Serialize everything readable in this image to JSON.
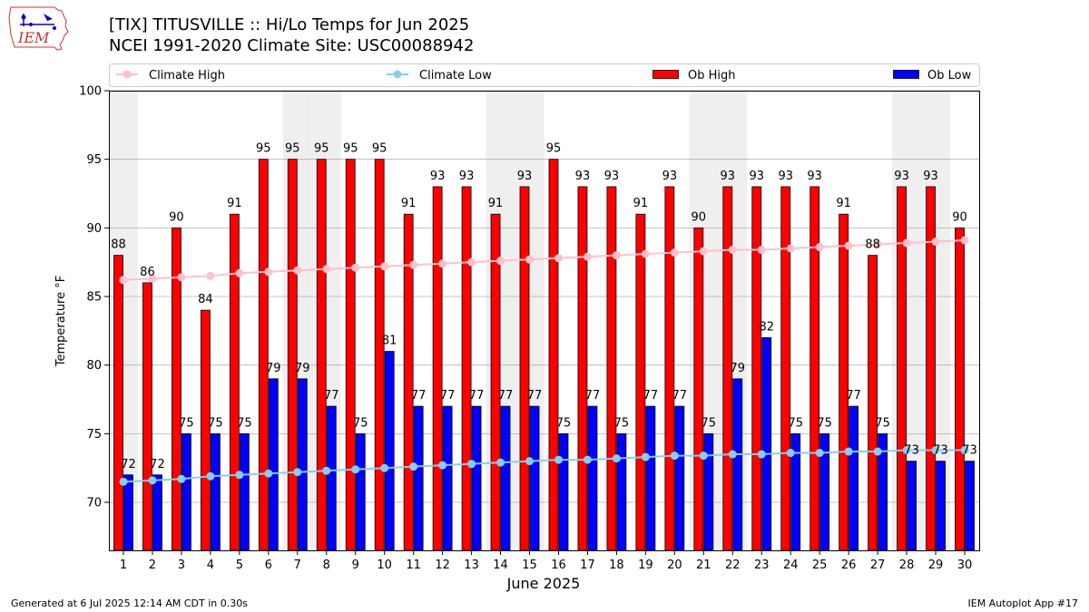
{
  "header": {
    "title_line1": "[TIX] TITUSVILLE :: Hi/Lo Temps for Jun 2025",
    "title_line2": "NCEI 1991-2020 Climate Site: USC00088942"
  },
  "logo": {
    "text": "IEM"
  },
  "footer": {
    "left": "Generated at 6 Jul 2025 12:14 AM CDT in 0.30s",
    "right": "IEM Autoplot App #17"
  },
  "colors": {
    "ob_high": "#ff0000",
    "ob_low": "#0000ff",
    "climate_high": "#ffc0cb",
    "climate_low": "#87ceeb",
    "weekend_shade": "#efefef",
    "grid": "#b0b0b0"
  },
  "chart_data": {
    "type": "bar",
    "xlabel": "June 2025",
    "ylabel": "Temperature °F",
    "ylim": [
      66.5,
      100
    ],
    "yticks": [
      70,
      75,
      80,
      85,
      90,
      95,
      100
    ],
    "grid": "horizontal",
    "legend": {
      "placement": "top",
      "entries": [
        "Climate High",
        "Climate Low",
        "Ob High",
        "Ob Low"
      ]
    },
    "categories": [
      "1",
      "2",
      "3",
      "4",
      "5",
      "6",
      "7",
      "8",
      "9",
      "10",
      "11",
      "12",
      "13",
      "14",
      "15",
      "16",
      "17",
      "18",
      "19",
      "20",
      "21",
      "22",
      "23",
      "24",
      "25",
      "26",
      "27",
      "28",
      "29",
      "30"
    ],
    "shaded_days": [
      1,
      7,
      8,
      14,
      15,
      21,
      22,
      28,
      29
    ],
    "series": [
      {
        "name": "Ob High",
        "kind": "bar",
        "values": [
          88,
          86,
          90,
          84,
          91,
          95,
          95,
          95,
          95,
          95,
          91,
          93,
          93,
          91,
          93,
          95,
          93,
          93,
          91,
          93,
          90,
          93,
          93,
          93,
          93,
          91,
          88,
          93,
          93,
          90
        ]
      },
      {
        "name": "Ob Low",
        "kind": "bar",
        "values": [
          72,
          72,
          75,
          75,
          75,
          79,
          79,
          77,
          75,
          81,
          77,
          77,
          77,
          77,
          77,
          75,
          77,
          75,
          77,
          77,
          75,
          79,
          82,
          75,
          75,
          77,
          75,
          73,
          73,
          73
        ]
      },
      {
        "name": "Climate High",
        "kind": "line",
        "values": [
          86.2,
          86.3,
          86.4,
          86.5,
          86.7,
          86.8,
          86.9,
          87.0,
          87.1,
          87.2,
          87.3,
          87.4,
          87.5,
          87.6,
          87.7,
          87.8,
          87.9,
          88.0,
          88.1,
          88.2,
          88.3,
          88.4,
          88.4,
          88.5,
          88.6,
          88.7,
          88.8,
          88.9,
          89.0,
          89.1
        ]
      },
      {
        "name": "Climate Low",
        "kind": "line",
        "values": [
          71.5,
          71.6,
          71.7,
          71.9,
          72.0,
          72.1,
          72.2,
          72.3,
          72.4,
          72.5,
          72.6,
          72.7,
          72.8,
          72.9,
          73.0,
          73.1,
          73.1,
          73.2,
          73.3,
          73.4,
          73.4,
          73.5,
          73.5,
          73.6,
          73.6,
          73.7,
          73.7,
          73.8,
          73.8,
          73.8
        ]
      }
    ]
  }
}
